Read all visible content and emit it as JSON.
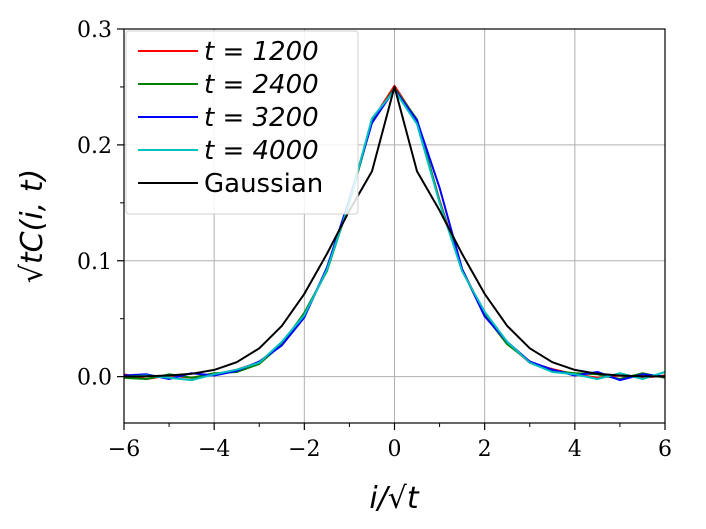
{
  "chart_data": {
    "type": "line",
    "title": "",
    "xlabel": "i/√t",
    "ylabel": "√tC(i, t)",
    "xlim": [
      -6,
      6
    ],
    "ylim": [
      -0.04,
      0.3
    ],
    "xticks": [
      -6,
      -4,
      -2,
      0,
      2,
      4,
      6
    ],
    "yticks": [
      0.0,
      0.1,
      0.2,
      0.3
    ],
    "xtick_labels": [
      "−6",
      "−4",
      "−2",
      "0",
      "2",
      "4",
      "6"
    ],
    "ytick_labels": [
      "0.0",
      "0.1",
      "0.2",
      "0.3"
    ],
    "grid": true,
    "legend_position": "top-left",
    "series": [
      {
        "name": "t = 1200",
        "color": "#ff0000",
        "x": [
          -6,
          -5.5,
          -5,
          -4.5,
          -4,
          -3.5,
          -3,
          -2.5,
          -2,
          -1.5,
          -1,
          -0.5,
          0,
          0.5,
          1,
          1.5,
          2,
          2.5,
          3,
          3.5,
          4,
          4.5,
          5,
          5.5,
          6
        ],
        "y": [
          0.002,
          -0.002,
          0.001,
          -0.001,
          0.002,
          0.006,
          0.0125,
          0.029,
          0.054,
          0.0915,
          0.152,
          0.221,
          0.251,
          0.221,
          0.152,
          0.0925,
          0.054,
          0.029,
          0.012,
          0.0065,
          0.002,
          -0.001,
          0.001,
          -0.001,
          0.001
        ]
      },
      {
        "name": "t = 2400",
        "color": "#008000",
        "x": [
          -6,
          -5.5,
          -5,
          -4.5,
          -4,
          -3.5,
          -3,
          -2.5,
          -2,
          -1.5,
          -1,
          -0.5,
          0,
          0.5,
          1,
          1.5,
          2,
          2.5,
          3,
          3.5,
          4,
          4.5,
          5,
          5.5,
          6
        ],
        "y": [
          -0.001,
          -0.002,
          0.002,
          -0.001,
          0.003,
          0.004,
          0.011,
          0.028,
          0.055,
          0.091,
          0.15,
          0.22,
          0.249,
          0.222,
          0.151,
          0.092,
          0.053,
          0.028,
          0.013,
          0.005,
          0.003,
          0.002,
          -0.002,
          0.003,
          -0.001
        ]
      },
      {
        "name": "t = 3200",
        "color": "#0000ff",
        "x": [
          -6,
          -5.5,
          -5,
          -4.5,
          -4,
          -3.5,
          -3,
          -2.5,
          -2,
          -1.5,
          -1,
          -0.5,
          0,
          0.5,
          1,
          1.5,
          2,
          2.5,
          3,
          3.5,
          4,
          4.5,
          5,
          5.5,
          6
        ],
        "y": [
          0.001,
          0.002,
          -0.002,
          0.003,
          0.001,
          0.005,
          0.013,
          0.027,
          0.051,
          0.094,
          0.153,
          0.219,
          0.248,
          0.221,
          0.163,
          0.093,
          0.052,
          0.03,
          0.013,
          0.006,
          0.001,
          0.004,
          -0.003,
          0.002,
          0.0
        ]
      },
      {
        "name": "t = 4000",
        "color": "#00c0c0",
        "x": [
          -6,
          -5.5,
          -5,
          -4.5,
          -4,
          -3.5,
          -3,
          -2.5,
          -2,
          -1.5,
          -1,
          -0.5,
          0,
          0.5,
          1,
          1.5,
          2,
          2.5,
          3,
          3.5,
          4,
          4.5,
          5,
          5.5,
          6
        ],
        "y": [
          0.0,
          0.001,
          -0.001,
          -0.003,
          0.002,
          0.006,
          0.012,
          0.03,
          0.053,
          0.092,
          0.15,
          0.223,
          0.247,
          0.218,
          0.15,
          0.091,
          0.056,
          0.03,
          0.012,
          0.004,
          0.002,
          -0.002,
          0.003,
          -0.002,
          0.004
        ]
      },
      {
        "name": "Gaussian",
        "color": "#000000",
        "x": [
          -6,
          -5.5,
          -5,
          -4.5,
          -4,
          -3.5,
          -3,
          -2.5,
          -2,
          -1.5,
          -1,
          -0.5,
          0,
          0.5,
          1,
          1.5,
          2,
          2.5,
          3,
          3.5,
          4,
          4.5,
          5,
          5.5,
          6
        ],
        "y": [
          0.0001,
          0.0003,
          0.001,
          0.0025,
          0.0058,
          0.0125,
          0.0245,
          0.0438,
          0.0714,
          0.1059,
          0.1434,
          0.1772,
          0.25,
          0.1772,
          0.1434,
          0.1059,
          0.0714,
          0.0438,
          0.0245,
          0.0125,
          0.0058,
          0.0025,
          0.001,
          0.0003,
          0.0001
        ]
      }
    ]
  }
}
